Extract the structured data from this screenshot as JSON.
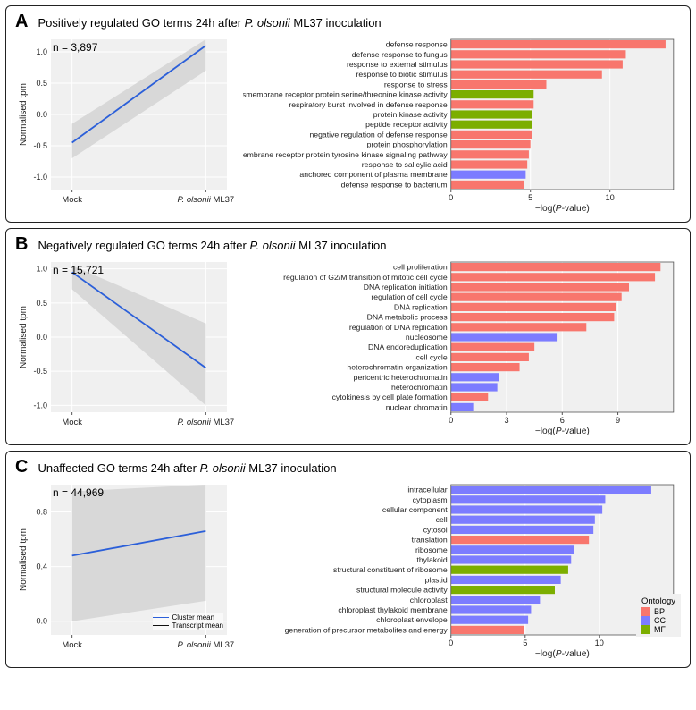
{
  "colors": {
    "BP": "#f8766d",
    "CC": "#7c7cff",
    "MF": "#7cae00",
    "line_mean": "#2b5fd9",
    "line_transcript": "#111111",
    "ribbon_fill": "#d6d6d6",
    "panel_bg": "#f0f0f0",
    "grid": "#ffffff",
    "axis": "#333333"
  },
  "legend": {
    "title": "Ontology",
    "items": [
      {
        "key": "BP",
        "label": "BP"
      },
      {
        "key": "CC",
        "label": "CC"
      },
      {
        "key": "MF",
        "label": "MF"
      }
    ]
  },
  "mini_legend": [
    {
      "label": "Cluster mean",
      "color": "#2b5fd9"
    },
    {
      "label": "Transcript mean",
      "color": "#111111"
    }
  ],
  "panels": [
    {
      "letter": "A",
      "title_pre": "Positively regulated GO terms 24h after ",
      "title_ital": "P. olsonii",
      "title_post": " ML37 inoculation",
      "n_label": "n = 3,897",
      "line": {
        "ylabel": "Normalised tpm",
        "xticks": [
          "Mock",
          "P. olsonii ML37"
        ],
        "yticks": [
          -1.0,
          -0.5,
          0.0,
          0.5,
          1.0
        ],
        "ylim": [
          -1.2,
          1.2
        ],
        "mean": [
          -0.45,
          1.1
        ],
        "ribbon_lo": [
          -0.7,
          0.7
        ],
        "ribbon_hi": [
          -0.15,
          1.2
        ]
      },
      "bar": {
        "xlabel": "−log(P-value)",
        "xlim": [
          0,
          14
        ],
        "xticks": [
          0,
          5,
          10
        ],
        "terms": [
          {
            "label": "defense response",
            "v": 13.5,
            "cat": "BP"
          },
          {
            "label": "defense response to fungus",
            "v": 11.0,
            "cat": "BP"
          },
          {
            "label": "response to external stimulus",
            "v": 10.8,
            "cat": "BP"
          },
          {
            "label": "response to biotic stimulus",
            "v": 9.5,
            "cat": "BP"
          },
          {
            "label": "response to stress",
            "v": 6.0,
            "cat": "BP"
          },
          {
            "label": "transmembrane receptor protein serine/threonine kinase activity",
            "v": 5.2,
            "cat": "MF"
          },
          {
            "label": "respiratory burst involved in defense response",
            "v": 5.2,
            "cat": "BP"
          },
          {
            "label": "protein kinase activity",
            "v": 5.1,
            "cat": "MF"
          },
          {
            "label": "peptide receptor activity",
            "v": 5.1,
            "cat": "MF"
          },
          {
            "label": "negative regulation of defense response",
            "v": 5.1,
            "cat": "BP"
          },
          {
            "label": "protein phosphorylation",
            "v": 5.0,
            "cat": "BP"
          },
          {
            "label": "transmembrane receptor protein tyrosine kinase signaling pathway",
            "v": 4.9,
            "cat": "BP"
          },
          {
            "label": "response to salicylic acid",
            "v": 4.8,
            "cat": "BP"
          },
          {
            "label": "anchored component of plasma membrane",
            "v": 4.7,
            "cat": "CC"
          },
          {
            "label": "defense response to bacterium",
            "v": 4.6,
            "cat": "BP"
          }
        ]
      },
      "show_mini_legend": false
    },
    {
      "letter": "B",
      "title_pre": "Negatively regulated GO terms 24h after ",
      "title_ital": "P. olsonii",
      "title_post": " ML37 inoculation",
      "n_label": "n = 15,721",
      "line": {
        "ylabel": "Normalised tpm",
        "xticks": [
          "Mock",
          "P. olsonii ML37"
        ],
        "yticks": [
          -1.0,
          -0.5,
          0.0,
          0.5,
          1.0
        ],
        "ylim": [
          -1.1,
          1.1
        ],
        "mean": [
          0.95,
          -0.45
        ],
        "ribbon_lo": [
          0.7,
          -1.0
        ],
        "ribbon_hi": [
          1.05,
          0.2
        ]
      },
      "bar": {
        "xlabel": "−log(P-value)",
        "xlim": [
          0,
          12
        ],
        "xticks": [
          0,
          3,
          6,
          9
        ],
        "terms": [
          {
            "label": "cell proliferation",
            "v": 11.3,
            "cat": "BP"
          },
          {
            "label": "regulation of G2/M transition of mitotic cell cycle",
            "v": 11.0,
            "cat": "BP"
          },
          {
            "label": "DNA replication initiation",
            "v": 9.6,
            "cat": "BP"
          },
          {
            "label": "regulation of cell cycle",
            "v": 9.2,
            "cat": "BP"
          },
          {
            "label": "DNA replication",
            "v": 8.9,
            "cat": "BP"
          },
          {
            "label": "DNA metabolic process",
            "v": 8.8,
            "cat": "BP"
          },
          {
            "label": "regulation of DNA replication",
            "v": 7.3,
            "cat": "BP"
          },
          {
            "label": "nucleosome",
            "v": 5.7,
            "cat": "CC"
          },
          {
            "label": "DNA endoreduplication",
            "v": 4.5,
            "cat": "BP"
          },
          {
            "label": "cell cycle",
            "v": 4.2,
            "cat": "BP"
          },
          {
            "label": "heterochromatin organization",
            "v": 3.7,
            "cat": "BP"
          },
          {
            "label": "pericentric heterochromatin",
            "v": 2.6,
            "cat": "CC"
          },
          {
            "label": "heterochromatin",
            "v": 2.5,
            "cat": "CC"
          },
          {
            "label": "cytokinesis by cell plate formation",
            "v": 2.0,
            "cat": "BP"
          },
          {
            "label": "nuclear chromatin",
            "v": 1.2,
            "cat": "CC"
          }
        ]
      },
      "show_mini_legend": false
    },
    {
      "letter": "C",
      "title_pre": "Unaffected GO terms 24h after ",
      "title_ital": "P. olsonii",
      "title_post": " ML37 inoculation",
      "n_label": "n = 44,969",
      "line": {
        "ylabel": "Normalised tpm",
        "xticks": [
          "Mock",
          "P. olsonii ML37"
        ],
        "yticks": [
          0.0,
          0.4,
          0.8
        ],
        "ylim": [
          -0.1,
          1.0
        ],
        "mean": [
          0.48,
          0.66
        ],
        "ribbon_lo": [
          0.0,
          0.15
        ],
        "ribbon_hi": [
          0.95,
          1.0
        ]
      },
      "bar": {
        "xlabel": "−log(P-value)",
        "xlim": [
          0,
          15
        ],
        "xticks": [
          0,
          5,
          10
        ],
        "terms": [
          {
            "label": "intracellular",
            "v": 13.5,
            "cat": "CC"
          },
          {
            "label": "cytoplasm",
            "v": 10.4,
            "cat": "CC"
          },
          {
            "label": "cellular component",
            "v": 10.2,
            "cat": "CC"
          },
          {
            "label": "cell",
            "v": 9.7,
            "cat": "CC"
          },
          {
            "label": "cytosol",
            "v": 9.6,
            "cat": "CC"
          },
          {
            "label": "translation",
            "v": 9.3,
            "cat": "BP"
          },
          {
            "label": "ribosome",
            "v": 8.3,
            "cat": "CC"
          },
          {
            "label": "thylakoid",
            "v": 8.1,
            "cat": "CC"
          },
          {
            "label": "structural constituent of ribosome",
            "v": 7.9,
            "cat": "MF"
          },
          {
            "label": "plastid",
            "v": 7.4,
            "cat": "CC"
          },
          {
            "label": "structural molecule activity",
            "v": 7.0,
            "cat": "MF"
          },
          {
            "label": "chloroplast",
            "v": 6.0,
            "cat": "CC"
          },
          {
            "label": "chloroplast thylakoid membrane",
            "v": 5.4,
            "cat": "CC"
          },
          {
            "label": "chloroplast envelope",
            "v": 5.2,
            "cat": "CC"
          },
          {
            "label": "generation of precursor metabolites and energy",
            "v": 4.9,
            "cat": "BP"
          }
        ]
      },
      "show_mini_legend": true,
      "show_ontology_legend": true
    }
  ]
}
